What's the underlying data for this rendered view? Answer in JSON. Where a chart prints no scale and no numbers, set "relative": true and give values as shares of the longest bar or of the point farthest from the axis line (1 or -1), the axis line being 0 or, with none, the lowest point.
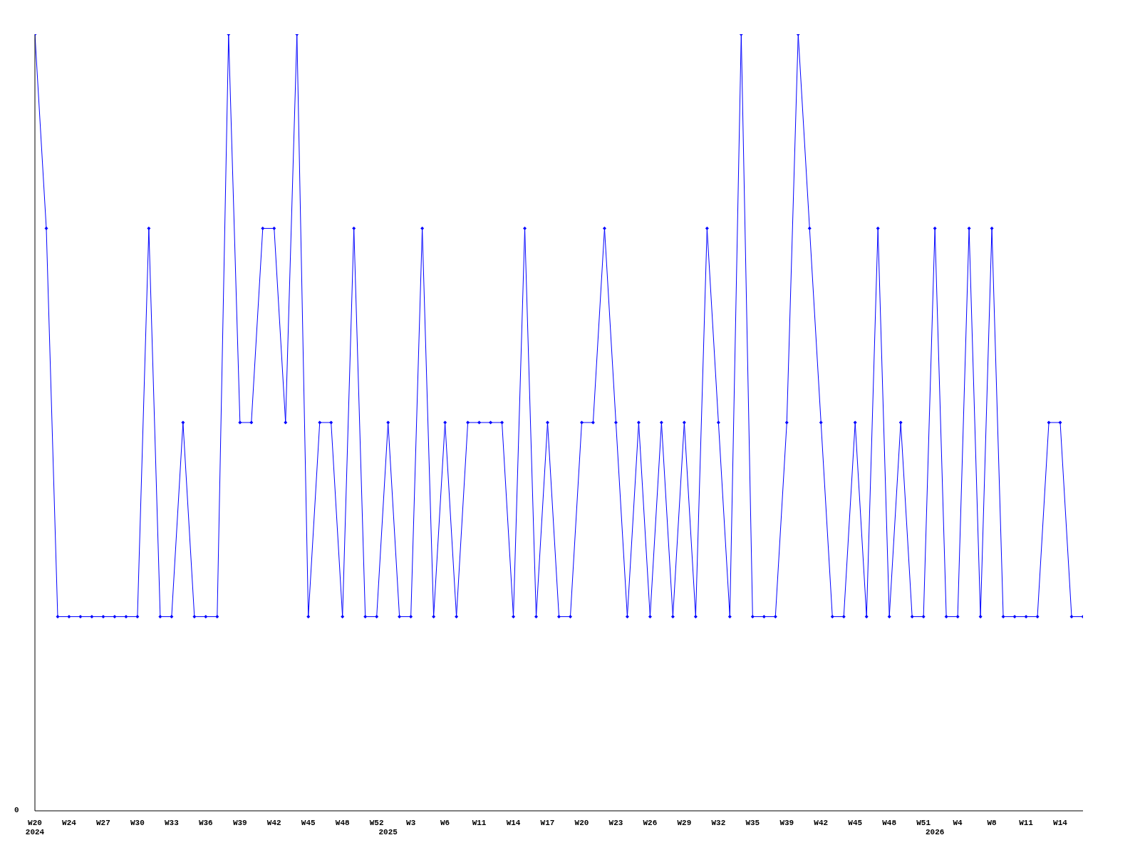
{
  "chart_data": {
    "type": "line",
    "relative": true,
    "annotations": [
      "0"
    ],
    "categories": [
      "W20\n2024",
      null,
      null,
      "W24",
      null,
      null,
      "W27",
      null,
      null,
      "W30",
      null,
      null,
      "W33",
      null,
      null,
      "W36",
      null,
      null,
      "W39",
      null,
      null,
      "W42",
      null,
      null,
      "W45",
      null,
      null,
      "W48",
      null,
      null,
      "W52",
      "\n2025",
      null,
      "W3",
      null,
      null,
      "W6",
      null,
      null,
      "W11",
      null,
      null,
      "W14",
      null,
      null,
      "W17",
      null,
      null,
      "W20",
      null,
      null,
      "W23",
      null,
      null,
      "W26",
      null,
      null,
      "W29",
      null,
      null,
      "W32",
      null,
      null,
      "W35",
      null,
      null,
      "W39",
      null,
      null,
      "W42",
      null,
      null,
      "W45",
      null,
      null,
      "W48",
      null,
      null,
      "W51",
      "\n2026",
      null,
      "W4",
      null,
      null,
      "W8",
      null,
      null,
      "W11",
      null,
      null,
      "W14",
      null,
      null
    ],
    "series": [
      {
        "color": "#0000ff",
        "values": [
          1,
          0.75,
          0.25,
          0.25,
          0.25,
          0.25,
          0.25,
          0.25,
          0.25,
          0.25,
          0.75,
          0.25,
          0.25,
          0.5,
          0.25,
          0.25,
          0.25,
          1,
          0.5,
          0.5,
          0.75,
          0.75,
          0.5,
          1,
          0.25,
          0.5,
          0.5,
          0.25,
          0.75,
          0.25,
          0.25,
          0.5,
          0.25,
          0.25,
          0.75,
          0.25,
          0.5,
          0.25,
          0.5,
          0.5,
          0.5,
          0.5,
          0.25,
          0.75,
          0.25,
          0.5,
          0.25,
          0.25,
          0.5,
          0.5,
          0.75,
          0.5,
          0.25,
          0.5,
          0.25,
          0.5,
          0.25,
          0.5,
          0.25,
          0.75,
          0.5,
          0.25,
          1,
          0.25,
          0.25,
          0.25,
          0.5,
          1,
          0.75,
          0.5,
          0.25,
          0.25,
          0.5,
          0.25,
          0.75,
          0.25,
          0.5,
          0.25,
          0.25,
          0.75,
          0.25,
          0.25,
          0.75,
          0.25,
          0.75,
          0.25,
          0.25,
          0.25,
          0.25,
          0.5,
          0.5,
          0.25,
          0.25
        ]
      }
    ],
    "marker": "diamond",
    "line_style": "solid"
  }
}
